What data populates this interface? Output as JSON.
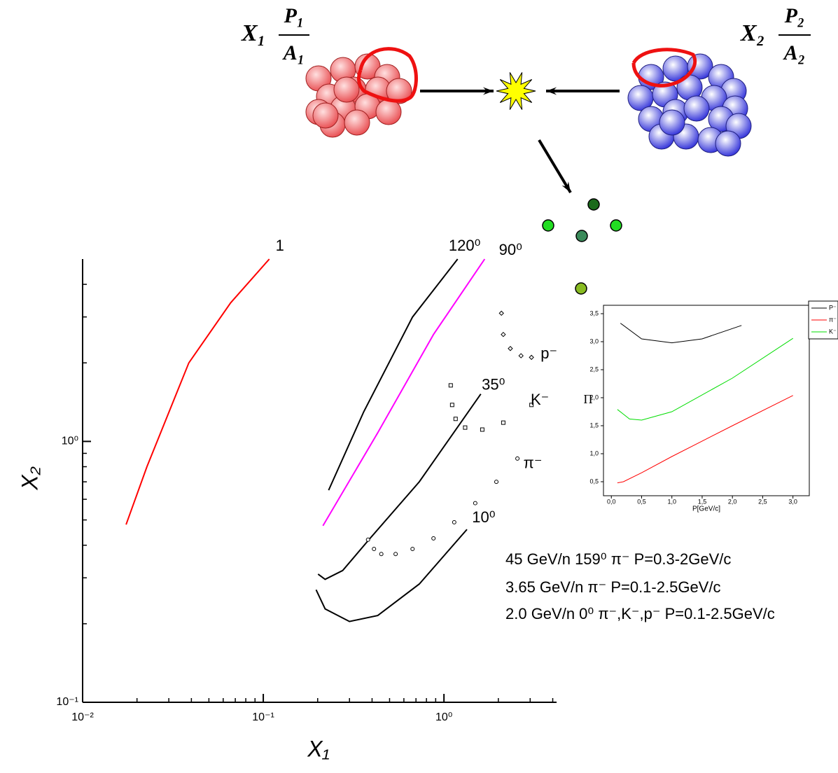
{
  "diagram": {
    "left_label": {
      "x": "X₁",
      "num": "P₁",
      "den": "A₁"
    },
    "right_label": {
      "x": "X₂",
      "num": "P₂",
      "den": "A₂"
    }
  },
  "annotations": [
    "45 GeV/n 159⁰  π⁻  P=0.3-2GeV/c",
    "3.65 GeV/n    π⁻  P=0.1-2.5GeV/c",
    "2.0 GeV/n   0⁰  π⁻,K⁻,p⁻  P=0.1-2.5GeV/c"
  ],
  "chart_data": [
    {
      "type": "line",
      "xscale": "log",
      "yscale": "log",
      "xlabel": "X₁",
      "ylabel": "X₂",
      "xlim": [
        0.01,
        4.2
      ],
      "ylim": [
        0.1,
        5
      ],
      "xticks": [
        {
          "value": 0.01,
          "label": "10⁻²"
        },
        {
          "value": 0.1,
          "label": "10⁻¹"
        },
        {
          "value": 1,
          "label": "10⁰"
        }
      ],
      "yticks": [
        {
          "value": 0.1,
          "label": "10⁻¹"
        },
        {
          "value": 1,
          "label": "10⁰"
        }
      ],
      "series": [
        {
          "name": "1",
          "color": "#ff0000",
          "style": "line",
          "x": [
            0.0174,
            0.0227,
            0.0387,
            0.066,
            0.108
          ],
          "values": [
            0.48,
            0.8,
            2.0,
            3.4,
            5.0
          ]
        },
        {
          "name": "120⁰",
          "color": "#000000",
          "style": "line",
          "x": [
            0.23,
            0.36,
            0.67,
            1.19
          ],
          "values": [
            0.65,
            1.3,
            3.0,
            5.0
          ]
        },
        {
          "name": "90⁰",
          "color": "#ff00ff",
          "style": "line",
          "x": [
            0.214,
            0.43,
            0.875,
            1.68
          ],
          "values": [
            0.475,
            1.08,
            2.57,
            5.0
          ]
        },
        {
          "name": "35⁰",
          "color": "#000000",
          "style": "line",
          "x": [
            0.201,
            0.22,
            0.275,
            0.39,
            0.73,
            1.6
          ],
          "values": [
            0.31,
            0.296,
            0.32,
            0.425,
            0.7,
            1.52
          ]
        },
        {
          "name": "10⁰",
          "color": "#000000",
          "style": "line",
          "x": [
            0.196,
            0.22,
            0.3,
            0.43,
            0.73,
            1.34
          ],
          "values": [
            0.27,
            0.228,
            0.204,
            0.215,
            0.284,
            0.46
          ]
        },
        {
          "name": "p⁻",
          "color": "#000000",
          "style": "diamond",
          "x": [
            2.08,
            2.13,
            2.33,
            2.67,
            3.05
          ],
          "values": [
            3.1,
            2.57,
            2.27,
            2.13,
            2.1
          ]
        },
        {
          "name": "K⁻",
          "color": "#000000",
          "style": "square",
          "x": [
            1.09,
            1.11,
            1.16,
            1.31,
            1.63,
            2.13,
            3.05
          ],
          "values": [
            1.64,
            1.38,
            1.22,
            1.13,
            1.11,
            1.18,
            1.38
          ]
        },
        {
          "name": "π⁻",
          "color": "#000000",
          "style": "circle",
          "x": [
            0.38,
            0.41,
            0.45,
            0.54,
            0.67,
            0.875,
            1.14,
            1.49,
            1.95,
            2.55
          ],
          "values": [
            0.42,
            0.387,
            0.37,
            0.37,
            0.387,
            0.425,
            0.49,
            0.58,
            0.7,
            0.86
          ]
        }
      ]
    },
    {
      "type": "line",
      "xscale": "linear",
      "yscale": "linear",
      "xlabel": "P[GeV/c]",
      "ylabel": "Π",
      "xlim": [
        -0.13,
        3.27
      ],
      "ylim": [
        0.25,
        3.65
      ],
      "legend": "top-right",
      "xticks": [
        {
          "value": 0,
          "label": "0,0"
        },
        {
          "value": 0.5,
          "label": "0,5"
        },
        {
          "value": 1,
          "label": "1,0"
        },
        {
          "value": 1.5,
          "label": "1,5"
        },
        {
          "value": 2,
          "label": "2,0"
        },
        {
          "value": 2.5,
          "label": "2,5"
        },
        {
          "value": 3,
          "label": "3,0"
        }
      ],
      "yticks": [
        {
          "value": 0.5,
          "label": "0,5"
        },
        {
          "value": 1,
          "label": "1,0"
        },
        {
          "value": 1.5,
          "label": "1,5"
        },
        {
          "value": 2,
          "label": "2,0"
        },
        {
          "value": 2.5,
          "label": "2,5"
        },
        {
          "value": 3,
          "label": "3,0"
        },
        {
          "value": 3.5,
          "label": "3,5"
        }
      ],
      "series": [
        {
          "name": "P⁻",
          "color": "#000000",
          "style": "line",
          "x": [
            0.15,
            0.5,
            1.0,
            1.5,
            2.15
          ],
          "values": [
            3.33,
            3.05,
            2.98,
            3.05,
            3.29
          ]
        },
        {
          "name": "π⁻",
          "color": "#ff0000",
          "style": "line",
          "x": [
            0.1,
            0.2,
            0.5,
            1.0,
            2.0,
            3.0
          ],
          "values": [
            0.48,
            0.5,
            0.66,
            0.95,
            1.5,
            2.04
          ]
        },
        {
          "name": "K⁻",
          "color": "#00dd00",
          "style": "line",
          "x": [
            0.1,
            0.3,
            0.5,
            1.0,
            2.0,
            3.0
          ],
          "values": [
            1.79,
            1.62,
            1.6,
            1.75,
            2.35,
            3.06
          ]
        }
      ]
    }
  ]
}
